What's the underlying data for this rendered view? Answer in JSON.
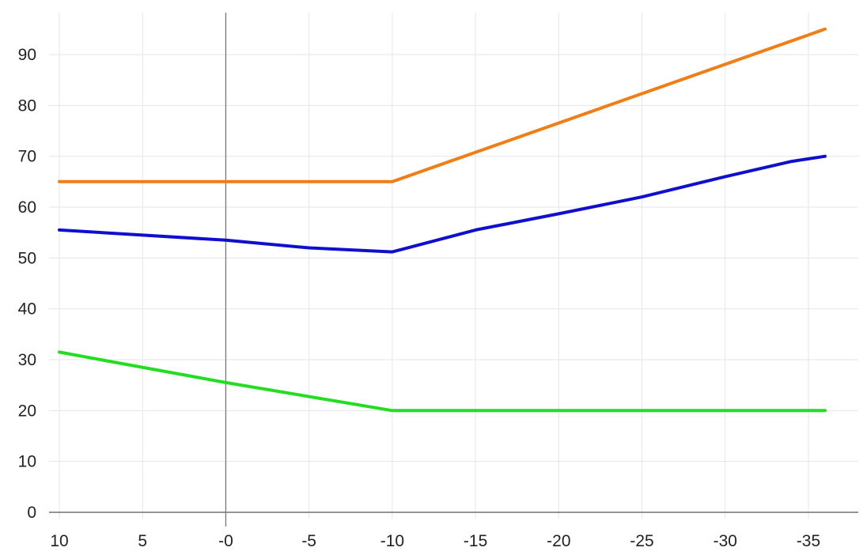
{
  "chart_data": {
    "type": "line",
    "x_reversed": true,
    "xlim": [
      10,
      -36
    ],
    "ylim": [
      0,
      97
    ],
    "x_ticks": [
      10,
      5,
      0,
      -5,
      -10,
      -15,
      -20,
      -25,
      -30,
      -35
    ],
    "x_tick_labels": [
      "10",
      "5",
      "-0",
      "-5",
      "-10",
      "-15",
      "-20",
      "-25",
      "-30",
      "-35"
    ],
    "y_ticks": [
      0,
      10,
      20,
      30,
      40,
      50,
      60,
      70,
      80,
      90
    ],
    "y_tick_labels": [
      "0",
      "10",
      "20",
      "30",
      "40",
      "50",
      "60",
      "70",
      "80",
      "90"
    ],
    "grid": true,
    "legend": "none",
    "series": [
      {
        "color": "#f07d16",
        "points": [
          [
            10,
            65
          ],
          [
            -10,
            65
          ],
          [
            -36,
            95
          ]
        ]
      },
      {
        "color": "#1010cc",
        "points": [
          [
            10,
            55.5
          ],
          [
            0,
            53.5
          ],
          [
            -5,
            52
          ],
          [
            -10,
            51.2
          ],
          [
            -15,
            55.5
          ],
          [
            -20,
            58.7
          ],
          [
            -25,
            62
          ],
          [
            -30,
            66
          ],
          [
            -34,
            69
          ],
          [
            -36,
            70
          ]
        ]
      },
      {
        "color": "#22dd22",
        "points": [
          [
            10,
            31.5
          ],
          [
            0,
            25.5
          ],
          [
            -10,
            20
          ],
          [
            -36,
            20
          ]
        ]
      }
    ]
  }
}
